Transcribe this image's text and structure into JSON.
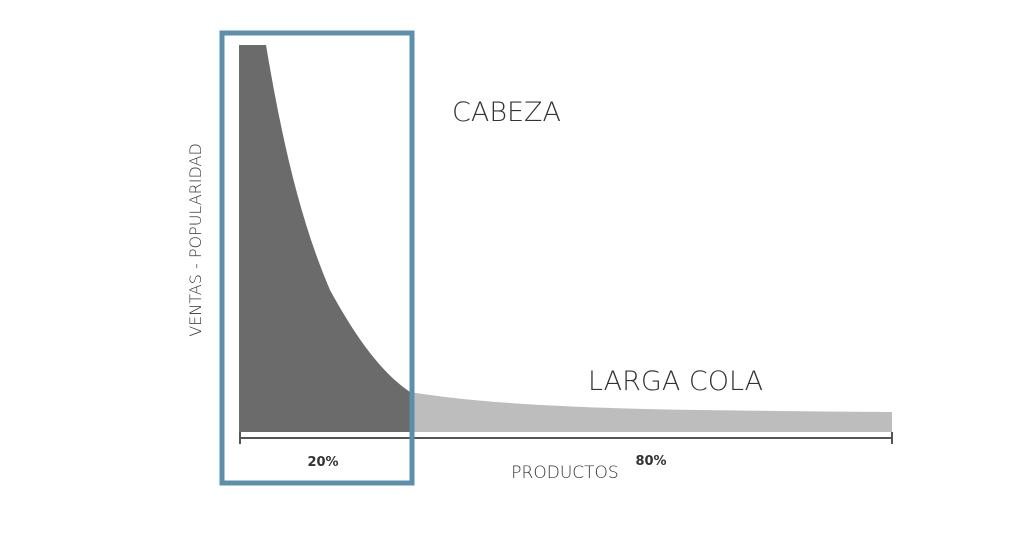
{
  "labels": {
    "head": "CABEZA",
    "tail": "LARGA COLA",
    "y_axis": "VENTAS - POPULARIDAD",
    "x_axis": "PRODUCTOS",
    "head_share": "20%",
    "tail_share": "80%"
  },
  "colors": {
    "head_fill": "#6b6b6b",
    "tail_fill": "#bdbdbd",
    "highlight_frame": "#5b8fab",
    "axis": "#555555",
    "text": "#333333"
  }
}
